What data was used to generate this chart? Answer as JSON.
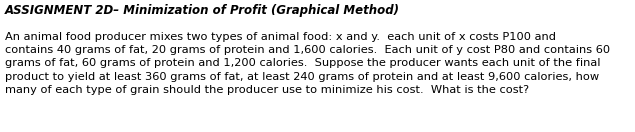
{
  "title": "ASSIGNMENT 2D– Minimization of Profit (Graphical Method)",
  "body": "An animal food producer mixes two types of animal food: x and y.  each unit of x costs P100 and\ncontains 40 grams of fat, 20 grams of protein and 1,600 calories.  Each unit of y cost P80 and contains 60\ngrams of fat, 60 grams of protein and 1,200 calories.  Suppose the producer wants each unit of the final\nproduct to yield at least 360 grams of fat, at least 240 grams of protein and at least 9,600 calories, how\nmany of each type of grain should the producer use to minimize his cost.  What is the cost?",
  "background_color": "#ffffff",
  "title_fontsize": 8.5,
  "body_fontsize": 8.2,
  "title_color": "#000000",
  "body_color": "#000000",
  "fig_width": 6.35,
  "fig_height": 1.32,
  "dpi": 100
}
